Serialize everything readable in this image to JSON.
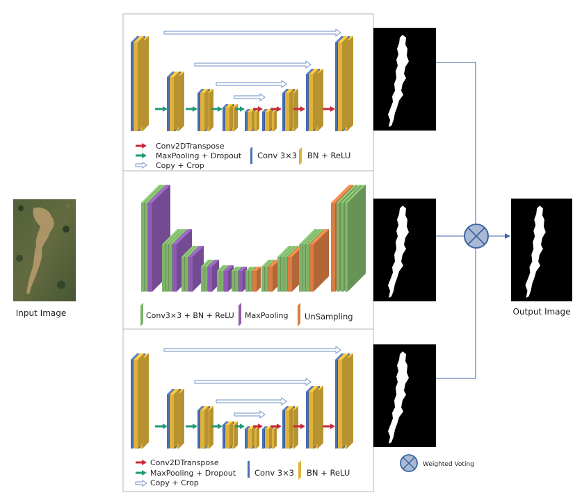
{
  "labels": {
    "input_image": "Input Image",
    "output_image": "Output Image",
    "weighted_voting": "Weighted Voting"
  },
  "unet_legend": {
    "conv2d_transpose": "Conv2DTranspose",
    "maxpool_dropout": "MaxPooling + Dropout",
    "copy_crop": "Copy + Crop",
    "conv3x3": "Conv 3×3",
    "bn_relu": "BN + ReLU"
  },
  "segnet_legend": {
    "conv_bn_relu": "Conv3×3 + BN + ReLU",
    "maxpooling": "MaxPooling",
    "unsampling": "UnSampling"
  },
  "colors": {
    "unet_conv": "#4a6fb3",
    "unet_bn": "#dfb23a",
    "segnet_conv": "#7fb36a",
    "segnet_pool": "#8e5bb3",
    "segnet_up": "#d97d43",
    "arrow_transpose": "#c8283a",
    "arrow_pool": "#1f9a78",
    "arrow_copy": "#ffffff",
    "connector": "#3c63a5",
    "voting_fill": "#a9b9d3"
  },
  "icons": {
    "weighted_voting": "circle-x-icon"
  }
}
